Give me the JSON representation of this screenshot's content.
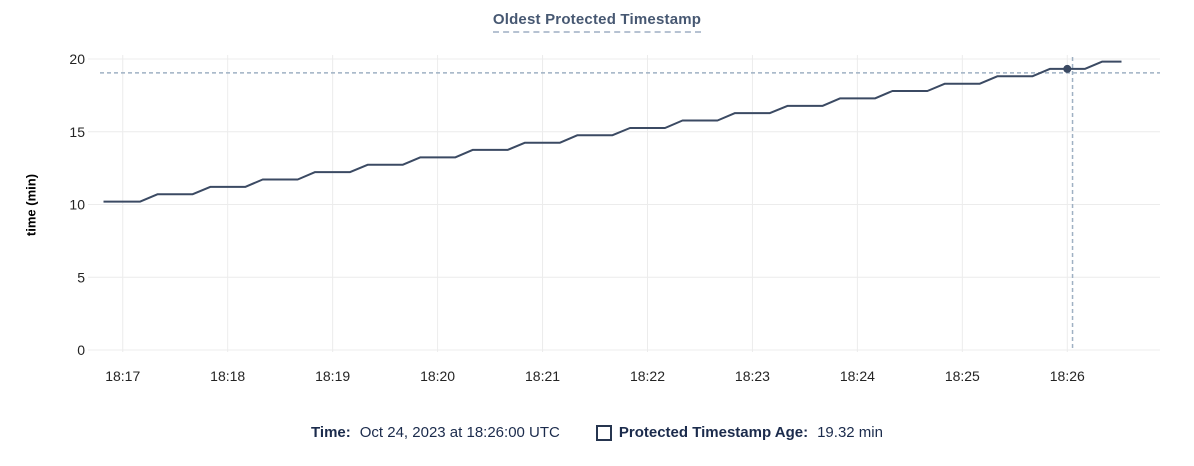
{
  "chart_data": {
    "type": "line",
    "title": "Oldest Protected Timestamp",
    "xlabel": "",
    "ylabel": "time (min)",
    "ylim": [
      0,
      20
    ],
    "y_ticks": [
      0,
      5,
      10,
      15,
      20
    ],
    "x_tick_labels": [
      "18:17",
      "18:18",
      "18:19",
      "18:20",
      "18:21",
      "18:22",
      "18:23",
      "18:24",
      "18:25",
      "18:26"
    ],
    "x_tick_seconds": [
      0,
      60,
      120,
      180,
      240,
      300,
      360,
      420,
      480,
      540
    ],
    "x_range_seconds": [
      -13,
      593
    ],
    "grid": true,
    "legend_position": "bottom",
    "series": [
      {
        "name": "Protected Timestamp Age",
        "unit": "min",
        "color": "#3b4a63",
        "points_t_seconds_value_min": [
          [
            -11,
            10.2
          ],
          [
            10,
            10.2
          ],
          [
            20,
            10.71
          ],
          [
            40,
            10.71
          ],
          [
            50,
            11.21
          ],
          [
            70,
            11.21
          ],
          [
            80,
            11.72
          ],
          [
            100,
            11.72
          ],
          [
            110,
            12.23
          ],
          [
            130,
            12.23
          ],
          [
            140,
            12.73
          ],
          [
            160,
            12.73
          ],
          [
            170,
            13.24
          ],
          [
            190,
            13.24
          ],
          [
            200,
            13.75
          ],
          [
            220,
            13.75
          ],
          [
            230,
            14.25
          ],
          [
            250,
            14.25
          ],
          [
            260,
            14.76
          ],
          [
            280,
            14.76
          ],
          [
            290,
            15.26
          ],
          [
            310,
            15.26
          ],
          [
            320,
            15.77
          ],
          [
            340,
            15.77
          ],
          [
            350,
            16.28
          ],
          [
            370,
            16.28
          ],
          [
            380,
            16.78
          ],
          [
            400,
            16.78
          ],
          [
            410,
            17.29
          ],
          [
            430,
            17.29
          ],
          [
            440,
            17.8
          ],
          [
            460,
            17.8
          ],
          [
            470,
            18.3
          ],
          [
            490,
            18.3
          ],
          [
            500,
            18.81
          ],
          [
            520,
            18.81
          ],
          [
            530,
            19.32
          ],
          [
            550,
            19.32
          ],
          [
            560,
            19.82
          ],
          [
            571,
            19.82
          ]
        ]
      }
    ],
    "crosshair": {
      "time_text": "Oct 24, 2023 at 18:26:00 UTC",
      "t_seconds": 540,
      "value_min": 19.32,
      "cursor_t_seconds": 543,
      "cursor_value_min": 19.05,
      "color": "#9fb1c3"
    }
  },
  "legend": {
    "time_label": "Time:",
    "time_value": "Oct 24, 2023 at 18:26:00 UTC",
    "series_label": "Protected Timestamp Age:",
    "series_value": "19.32 min"
  },
  "colors": {
    "title": "#475872",
    "line": "#3b4a63",
    "grid": "#ececec",
    "dashed_crosshair": "#9fb1c3",
    "tick_text": "#242424",
    "legend_text": "#1b2b4c",
    "background": "#ffffff"
  }
}
